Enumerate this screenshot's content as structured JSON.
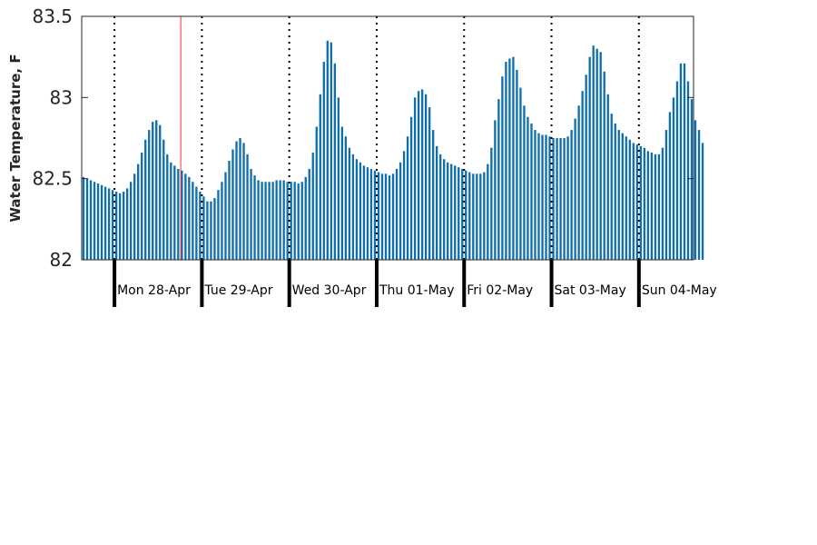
{
  "chart_data": {
    "type": "bar",
    "ylabel": "Water Temperature, F",
    "ylim": [
      82,
      83.5
    ],
    "yticks": [
      "82",
      "82.5",
      "83",
      "83.5"
    ],
    "x_unit": "hours since Sun 27-Apr 20:00",
    "xlim": [
      0,
      168
    ],
    "day_boundaries": [
      {
        "label": "Mon 28-Apr",
        "x": 9
      },
      {
        "label": "Tue 29-Apr",
        "x": 33
      },
      {
        "label": "Wed 30-Apr",
        "x": 57
      },
      {
        "label": "Thu 01-May",
        "x": 81
      },
      {
        "label": "Fri 02-May",
        "x": 105
      },
      {
        "label": "Sat 03-May",
        "x": 129
      },
      {
        "label": "Sun 04-May",
        "x": 153
      }
    ],
    "marker_line_x": 27.2,
    "series": [
      {
        "values": [
          82.51,
          82.5,
          82.49,
          82.48,
          82.47,
          82.46,
          82.45,
          82.44,
          82.43,
          82.42,
          82.41,
          82.42,
          82.44,
          82.48,
          82.53,
          82.59,
          82.66,
          82.74,
          82.8,
          82.85,
          82.86,
          82.83,
          82.74,
          82.65,
          82.6,
          82.58,
          82.56,
          82.55,
          82.53,
          82.51,
          82.48,
          82.45,
          82.42,
          82.39,
          82.36,
          82.36,
          82.38,
          82.43,
          82.48,
          82.54,
          82.61,
          82.68,
          82.73,
          82.75,
          82.72,
          82.65,
          82.56,
          82.52,
          82.49,
          82.48,
          82.48,
          82.48,
          82.48,
          82.49,
          82.49,
          82.49,
          82.48,
          82.48,
          82.48,
          82.47,
          82.48,
          82.51,
          82.56,
          82.66,
          82.82,
          83.02,
          83.22,
          83.35,
          83.34,
          83.21,
          83.0,
          82.82,
          82.76,
          82.69,
          82.65,
          82.62,
          82.6,
          82.58,
          82.57,
          82.56,
          82.55,
          82.54,
          82.53,
          82.53,
          82.52,
          82.53,
          82.56,
          82.6,
          82.67,
          82.76,
          82.88,
          83.0,
          83.04,
          83.05,
          83.02,
          82.94,
          82.8,
          82.7,
          82.65,
          82.62,
          82.6,
          82.59,
          82.58,
          82.57,
          82.56,
          82.55,
          82.54,
          82.53,
          82.53,
          82.53,
          82.54,
          82.59,
          82.69,
          82.86,
          82.99,
          83.13,
          83.22,
          83.24,
          83.25,
          83.17,
          83.06,
          82.95,
          82.88,
          82.84,
          82.8,
          82.78,
          82.77,
          82.77,
          82.76,
          82.75,
          82.75,
          82.75,
          82.75,
          82.76,
          82.8,
          82.87,
          82.95,
          83.04,
          83.14,
          83.25,
          83.32,
          83.3,
          83.28,
          83.16,
          83.02,
          82.9,
          82.84,
          82.8,
          82.78,
          82.76,
          82.74,
          82.72,
          82.71,
          82.7,
          82.69,
          82.67,
          82.66,
          82.65,
          82.65,
          82.69,
          82.8,
          82.91,
          83.0,
          83.1,
          83.21,
          83.21,
          83.1,
          82.99,
          82.86,
          82.8,
          82.72
        ]
      }
    ],
    "colors": {
      "bar": "#0f6fad",
      "marker_line": "#ff3030",
      "axis": "#262626",
      "separator": "#000000"
    },
    "grid": false
  }
}
